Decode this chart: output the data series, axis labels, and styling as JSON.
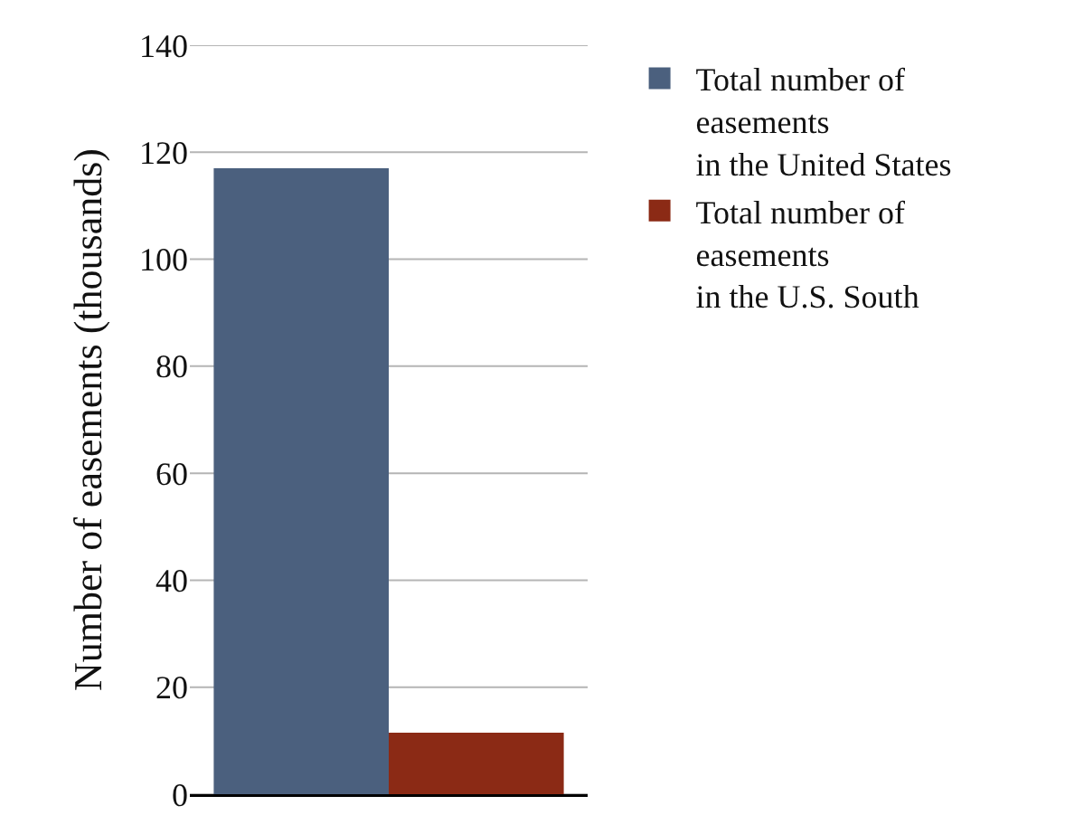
{
  "chart_data": {
    "type": "bar",
    "ylabel": "Number of easements (thousands)",
    "categories": [
      null
    ],
    "series": [
      {
        "name": "Total number of\neasements\nin the United States",
        "color": "#4b607e",
        "values": [
          117
        ]
      },
      {
        "name": "Total number of\neasements\nin the U.S. South",
        "color": "#8b2a15",
        "values": [
          11.5
        ]
      }
    ],
    "ylim": [
      0,
      140
    ],
    "yticks": [
      0,
      20,
      40,
      60,
      80,
      100,
      120,
      140
    ],
    "grid": "y",
    "legend": "top right"
  }
}
